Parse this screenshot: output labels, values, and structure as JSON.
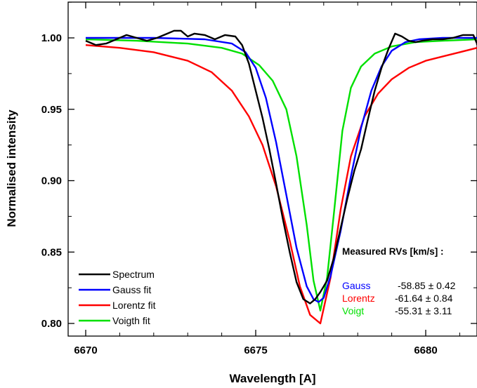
{
  "chart_data": {
    "type": "line",
    "title": "",
    "xlabel": "Wavelength [A]",
    "ylabel": "Normalised intensity",
    "xlim": [
      6670,
      6682
    ],
    "ylim": [
      0.792,
      1.025
    ],
    "grid": false,
    "legend_position": "bottom-left",
    "xticks": [
      6670,
      6675,
      6680
    ],
    "xtick_labels": [
      "6670",
      "6675",
      "6680"
    ],
    "yticks": [
      0.8,
      0.85,
      0.9,
      0.95,
      1.0
    ],
    "ytick_labels": [
      "0.80",
      "0.85",
      "0.90",
      "0.95",
      "1.00"
    ],
    "series": [
      {
        "name": "Spectrum",
        "color": "#000000",
        "x": [
          6670.0,
          6670.3,
          6670.6,
          6670.9,
          6671.2,
          6671.5,
          6671.8,
          6672.1,
          6672.4,
          6672.6,
          6672.8,
          6673.0,
          6673.2,
          6673.5,
          6673.8,
          6674.1,
          6674.4,
          6674.6,
          6674.8,
          6675.0,
          6675.2,
          6675.4,
          6675.6,
          6675.8,
          6676.0,
          6676.2,
          6676.4,
          6676.6,
          6676.75,
          6676.9,
          6677.1,
          6677.3,
          6677.5,
          6677.7,
          6677.9,
          6678.1,
          6678.3,
          6678.5,
          6678.7,
          6678.9,
          6679.1,
          6679.3,
          6679.5,
          6679.7,
          6679.9,
          6680.2,
          6680.5,
          6680.8,
          6681.1,
          6681.4,
          6681.7,
          6682.0
        ],
        "y": [
          0.998,
          0.995,
          0.996,
          0.999,
          1.002,
          1.0,
          0.998,
          1.0,
          1.003,
          1.005,
          1.005,
          1.001,
          1.003,
          1.002,
          0.999,
          1.002,
          1.001,
          0.995,
          0.982,
          0.963,
          0.944,
          0.922,
          0.898,
          0.873,
          0.85,
          0.829,
          0.817,
          0.814,
          0.817,
          0.822,
          0.83,
          0.846,
          0.867,
          0.888,
          0.907,
          0.922,
          0.943,
          0.963,
          0.979,
          0.992,
          1.003,
          1.001,
          0.998,
          0.997,
          0.998,
          0.999,
          0.999,
          1.0,
          1.002,
          1.002,
          0.996,
          0.995
        ]
      },
      {
        "name": "Gauss fit",
        "color": "#0000ff",
        "x": [
          6670.0,
          6672.0,
          6673.5,
          6674.3,
          6674.7,
          6675.0,
          6675.3,
          6675.6,
          6675.9,
          6676.2,
          6676.5,
          6676.7,
          6676.85,
          6677.0,
          6677.2,
          6677.5,
          6677.8,
          6678.1,
          6678.4,
          6678.7,
          6679.0,
          6679.4,
          6679.8,
          6680.5,
          6682.0
        ],
        "y": [
          1.0,
          1.0,
          0.999,
          0.996,
          0.99,
          0.979,
          0.958,
          0.927,
          0.89,
          0.853,
          0.826,
          0.817,
          0.815,
          0.818,
          0.833,
          0.865,
          0.903,
          0.937,
          0.963,
          0.98,
          0.991,
          0.997,
          0.999,
          1.0,
          1.0
        ]
      },
      {
        "name": "Lorentz fit",
        "color": "#ff0000",
        "x": [
          6670.0,
          6671.0,
          6672.0,
          6673.0,
          6673.7,
          6674.3,
          6674.8,
          6675.2,
          6675.6,
          6676.0,
          6676.3,
          6676.6,
          6676.9,
          6677.2,
          6677.5,
          6677.8,
          6678.2,
          6678.6,
          6679.0,
          6679.5,
          6680.0,
          6681.0,
          6682.0
        ],
        "y": [
          0.995,
          0.993,
          0.99,
          0.984,
          0.976,
          0.963,
          0.945,
          0.925,
          0.896,
          0.858,
          0.826,
          0.806,
          0.8,
          0.832,
          0.88,
          0.917,
          0.945,
          0.961,
          0.971,
          0.979,
          0.984,
          0.99,
          0.993
        ]
      },
      {
        "name": "Voigth fit",
        "color": "#00e000",
        "x": [
          6670.0,
          6671.5,
          6673.0,
          6674.0,
          6674.6,
          6675.1,
          6675.5,
          6675.9,
          6676.2,
          6676.5,
          6676.7,
          6676.9,
          6677.1,
          6677.3,
          6677.55,
          6677.8,
          6678.1,
          6678.5,
          6679.0,
          6679.7,
          6680.5,
          6682.0
        ],
        "y": [
          0.999,
          0.998,
          0.996,
          0.993,
          0.989,
          0.981,
          0.97,
          0.95,
          0.917,
          0.869,
          0.83,
          0.809,
          0.832,
          0.877,
          0.935,
          0.965,
          0.98,
          0.989,
          0.994,
          0.997,
          0.998,
          0.999
        ]
      }
    ],
    "annotations": {
      "header": "Measured RVs [km/s] :",
      "rows": [
        {
          "label": "Gauss",
          "value": "-58.85 ± 0.42",
          "color": "#0000ff"
        },
        {
          "label": "Lorentz",
          "value": "-61.64 ± 0.84",
          "color": "#ff0000"
        },
        {
          "label": "Voigt",
          "value": "-55.31 ± 3.11",
          "color": "#00e000"
        }
      ]
    }
  }
}
